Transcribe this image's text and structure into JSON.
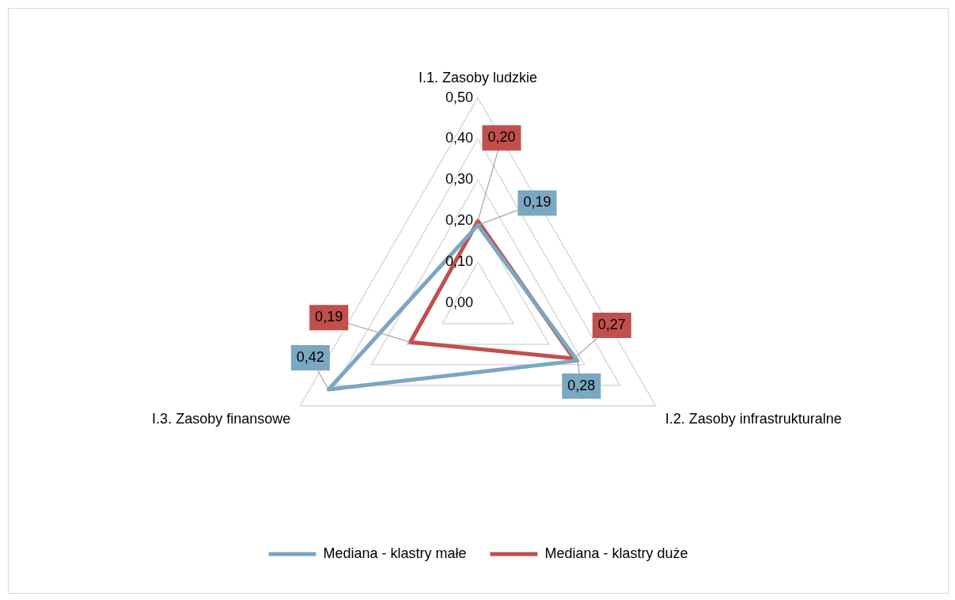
{
  "chart_data": {
    "type": "radar",
    "categories": [
      "I.1. Zasoby ludzkie",
      "I.2. Zasoby infrastrukturalne",
      "I.3. Zasoby finansowe"
    ],
    "series": [
      {
        "name": "Mediana - klastry małe",
        "color": "#7aa7c1",
        "values": [
          0.19,
          0.28,
          0.42
        ],
        "value_labels": [
          "0,19",
          "0,28",
          "0,42"
        ]
      },
      {
        "name": "Mediana - klastry duże",
        "color": "#c0504d",
        "values": [
          0.2,
          0.27,
          0.19
        ],
        "value_labels": [
          "0,20",
          "0,27",
          "0,19"
        ]
      }
    ],
    "ylim": [
      0,
      0.5
    ],
    "yticks": [
      {
        "value": 0,
        "label": "0,00"
      },
      {
        "value": 0.1,
        "label": "0,10"
      },
      {
        "value": 0.2,
        "label": "0,20"
      },
      {
        "value": 0.3,
        "label": "0,30"
      },
      {
        "value": 0.4,
        "label": "0,40"
      },
      {
        "value": 0.5,
        "label": "0,50"
      }
    ],
    "grid": true,
    "legend": "bottom"
  }
}
